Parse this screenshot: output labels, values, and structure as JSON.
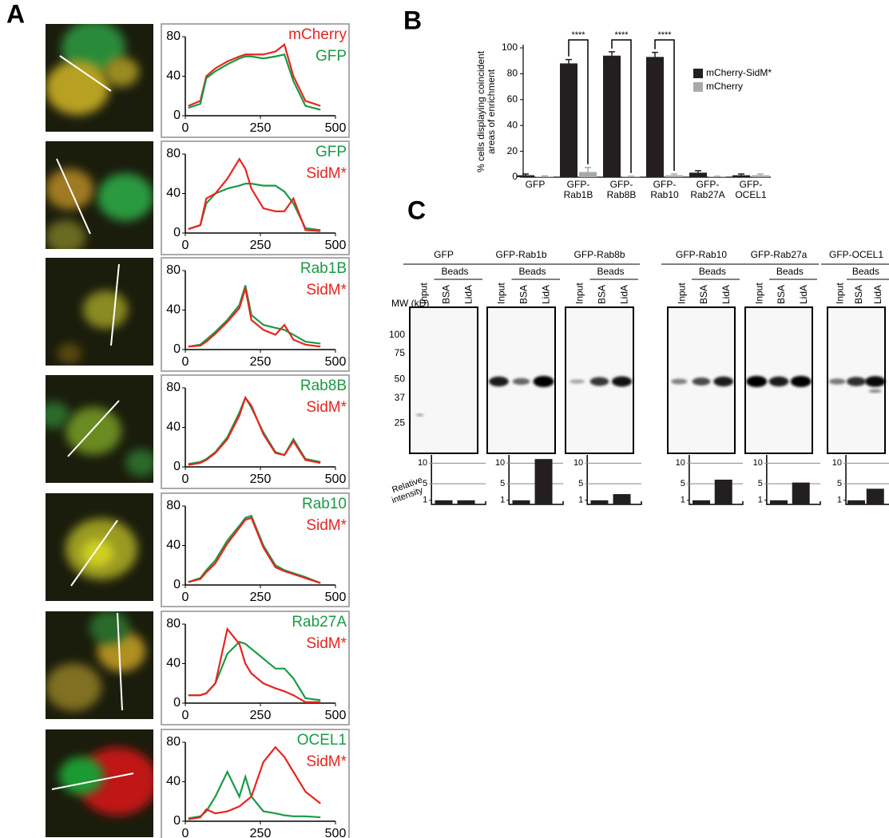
{
  "panel_labels": [
    "A",
    "B",
    "C"
  ],
  "chart_data": [
    {
      "type": "line",
      "x": [
        10,
        50,
        70,
        100,
        140,
        180,
        200,
        220,
        260,
        300,
        330,
        360,
        400,
        450
      ],
      "xlim": [
        0,
        500
      ],
      "ylim": [
        0,
        80
      ],
      "xticks": [
        0,
        250,
        500
      ],
      "yticks": [
        0,
        40,
        80
      ],
      "series": [
        {
          "name": "mCherry",
          "color": "#e8251f",
          "values": [
            10,
            15,
            40,
            48,
            55,
            60,
            62,
            62,
            62,
            65,
            72,
            40,
            15,
            10
          ]
        },
        {
          "name": "GFP",
          "color": "#1a9a46",
          "values": [
            8,
            12,
            38,
            45,
            52,
            58,
            60,
            60,
            58,
            60,
            62,
            35,
            10,
            6
          ]
        }
      ]
    },
    {
      "type": "line",
      "x": [
        10,
        50,
        70,
        100,
        140,
        180,
        200,
        220,
        260,
        300,
        330,
        360,
        400,
        450
      ],
      "xlim": [
        0,
        500
      ],
      "ylim": [
        0,
        80
      ],
      "xticks": [
        0,
        250,
        500
      ],
      "yticks": [
        0,
        40,
        80
      ],
      "series": [
        {
          "name": "GFP",
          "color": "#1a9a46",
          "values": [
            4,
            8,
            30,
            40,
            45,
            48,
            50,
            50,
            48,
            48,
            42,
            30,
            5,
            3
          ]
        },
        {
          "name": "SidM*",
          "color": "#e8251f",
          "values": [
            4,
            8,
            35,
            40,
            55,
            75,
            65,
            45,
            25,
            22,
            22,
            35,
            3,
            2
          ]
        }
      ]
    },
    {
      "type": "line",
      "x": [
        10,
        50,
        70,
        100,
        140,
        180,
        200,
        220,
        260,
        300,
        330,
        360,
        400,
        450
      ],
      "xlim": [
        0,
        500
      ],
      "ylim": [
        0,
        80
      ],
      "xticks": [
        0,
        250,
        500
      ],
      "yticks": [
        0,
        40,
        80
      ],
      "series": [
        {
          "name": "Rab1B",
          "color": "#1a9a46",
          "values": [
            3,
            5,
            10,
            18,
            30,
            45,
            65,
            35,
            25,
            22,
            20,
            15,
            8,
            6
          ]
        },
        {
          "name": "SidM*",
          "color": "#e8251f",
          "values": [
            3,
            4,
            8,
            16,
            28,
            42,
            62,
            30,
            20,
            15,
            25,
            10,
            5,
            3
          ]
        }
      ]
    },
    {
      "type": "line",
      "x": [
        10,
        50,
        70,
        100,
        140,
        180,
        200,
        220,
        260,
        300,
        330,
        360,
        400,
        450
      ],
      "xlim": [
        0,
        500
      ],
      "ylim": [
        0,
        80
      ],
      "xticks": [
        0,
        250,
        500
      ],
      "yticks": [
        0,
        40,
        80
      ],
      "series": [
        {
          "name": "Rab8B",
          "color": "#1a9a46",
          "values": [
            3,
            5,
            8,
            15,
            30,
            55,
            70,
            60,
            35,
            15,
            12,
            28,
            8,
            5
          ]
        },
        {
          "name": "SidM*",
          "color": "#e8251f",
          "values": [
            2,
            4,
            7,
            14,
            28,
            52,
            70,
            62,
            33,
            14,
            12,
            26,
            7,
            4
          ]
        }
      ]
    },
    {
      "type": "line",
      "x": [
        10,
        50,
        70,
        100,
        140,
        180,
        200,
        220,
        260,
        300,
        330,
        360,
        400,
        450
      ],
      "xlim": [
        0,
        500
      ],
      "ylim": [
        0,
        80
      ],
      "xticks": [
        0,
        250,
        500
      ],
      "yticks": [
        0,
        40,
        80
      ],
      "series": [
        {
          "name": "Rab10",
          "color": "#1a9a46",
          "values": [
            3,
            7,
            15,
            25,
            45,
            60,
            68,
            70,
            40,
            20,
            15,
            12,
            8,
            2
          ]
        },
        {
          "name": "SidM*",
          "color": "#e8251f",
          "values": [
            3,
            6,
            13,
            22,
            42,
            58,
            66,
            68,
            38,
            18,
            14,
            11,
            7,
            2
          ]
        }
      ]
    },
    {
      "type": "line",
      "x": [
        10,
        50,
        70,
        100,
        140,
        180,
        200,
        220,
        260,
        300,
        330,
        360,
        400,
        450
      ],
      "xlim": [
        0,
        500
      ],
      "ylim": [
        0,
        80
      ],
      "xticks": [
        0,
        250,
        500
      ],
      "yticks": [
        0,
        40,
        80
      ],
      "series": [
        {
          "name": "Rab27A",
          "color": "#1a9a46",
          "values": [
            8,
            8,
            10,
            20,
            50,
            62,
            60,
            55,
            45,
            35,
            35,
            25,
            5,
            3
          ]
        },
        {
          "name": "SidM*",
          "color": "#e8251f",
          "values": [
            8,
            8,
            10,
            20,
            75,
            60,
            40,
            30,
            20,
            15,
            12,
            8,
            1,
            1
          ]
        }
      ]
    },
    {
      "type": "line",
      "x": [
        10,
        50,
        70,
        100,
        140,
        180,
        200,
        220,
        260,
        300,
        330,
        360,
        400,
        450
      ],
      "xlim": [
        0,
        500
      ],
      "ylim": [
        0,
        80
      ],
      "xticks": [
        0,
        250,
        500
      ],
      "yticks": [
        0,
        40,
        80
      ],
      "series": [
        {
          "name": "OCEL1",
          "color": "#1a9a46",
          "values": [
            3,
            5,
            10,
            25,
            50,
            25,
            45,
            25,
            10,
            8,
            6,
            5,
            5,
            4
          ]
        },
        {
          "name": "SidM*",
          "color": "#e8251f",
          "values": [
            2,
            4,
            12,
            8,
            10,
            15,
            20,
            25,
            60,
            75,
            65,
            50,
            30,
            18
          ]
        }
      ]
    },
    {
      "type": "bar",
      "ylabel": [
        "% cells displaying coincident",
        "areas of enrichment"
      ],
      "categories": [
        [
          "GFP"
        ],
        [
          "GFP-",
          "Rab1B"
        ],
        [
          "GFP-",
          "Rab8B"
        ],
        [
          "GFP-",
          "Rab10"
        ],
        [
          "GFP-",
          "Rab27A"
        ],
        [
          "GFP-",
          "OCEL1"
        ]
      ],
      "ylim": [
        0,
        100
      ],
      "yticks": [
        0,
        20,
        40,
        60,
        80,
        100
      ],
      "series": [
        {
          "name": "mCherry-SidM*",
          "color": "#231f20",
          "values": [
            1.5,
            88,
            94,
            93,
            3.5,
            1.5
          ],
          "errors": [
            1,
            3,
            3,
            3.5,
            1.5,
            1
          ]
        },
        {
          "name": "mCherry",
          "color": "#a7a9ac",
          "values": [
            0.5,
            4,
            0.5,
            1.5,
            0.5,
            1.5
          ],
          "errors": [
            0.5,
            3.5,
            0.3,
            1,
            0.3,
            1
          ]
        }
      ],
      "annotations": [
        "****",
        "****",
        "****"
      ]
    },
    {
      "type": "intensity",
      "ylim": [
        0,
        12
      ],
      "yticks": [
        1,
        5,
        10
      ],
      "values": [
        1,
        1
      ]
    },
    {
      "type": "intensity",
      "ylim": [
        0,
        12
      ],
      "yticks": [
        1,
        5,
        10
      ],
      "values": [
        1,
        11
      ]
    },
    {
      "type": "intensity",
      "ylim": [
        0,
        12
      ],
      "yticks": [
        1,
        5,
        10
      ],
      "values": [
        1,
        2.5
      ]
    },
    {
      "type": "intensity",
      "ylim": [
        0,
        12
      ],
      "yticks": [
        1,
        5,
        10
      ],
      "values": [
        1,
        6
      ]
    },
    {
      "type": "intensity",
      "ylim": [
        0,
        12
      ],
      "yticks": [
        1,
        5,
        10
      ],
      "values": [
        1,
        5.3
      ]
    },
    {
      "type": "intensity",
      "ylim": [
        0,
        12
      ],
      "yticks": [
        1,
        5,
        10
      ],
      "values": [
        1,
        3.8
      ]
    }
  ],
  "blots": {
    "groups": [
      "GFP",
      "GFP-Rab1b",
      "GFP-Rab8b",
      "GFP-Rab10",
      "GFP-Rab27a",
      "GFP-OCEL1"
    ],
    "beads": "Beads",
    "lanes": [
      "Input",
      "BSA",
      "LidA"
    ],
    "mw_label": "MW (kD)",
    "mw_markers": [
      100,
      75,
      50,
      37,
      25
    ],
    "intensity_label": [
      "Relative",
      "intensity"
    ]
  }
}
